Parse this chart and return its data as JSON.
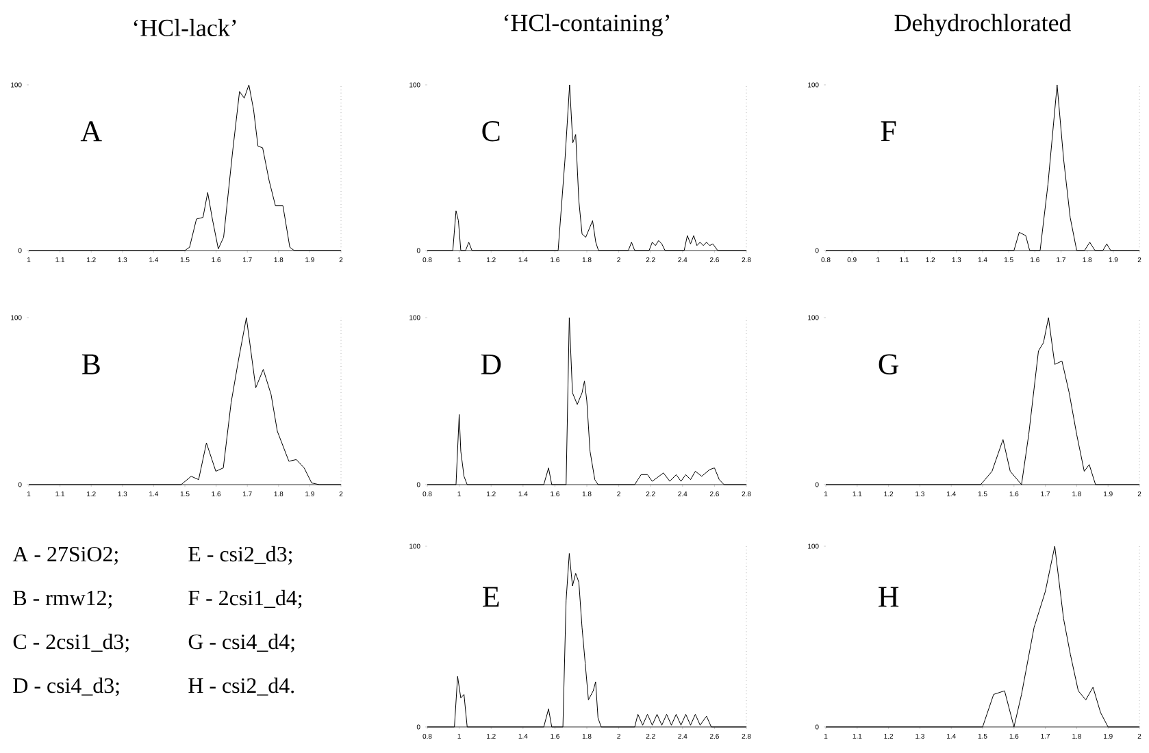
{
  "chart_data": [
    {
      "type": "line",
      "title": "‘HCl-lack’",
      "annotations": [
        "A"
      ],
      "xlim": [
        1,
        2
      ],
      "ylim": [
        0,
        100
      ],
      "xticks": [
        1,
        1.1,
        1.2,
        1.3,
        1.4,
        1.5,
        1.6,
        1.7,
        1.8,
        1.9,
        2
      ],
      "yticks": [
        0,
        100
      ],
      "grid": false,
      "series": [
        {
          "color": "#000000",
          "x": [
            1,
            1.5,
            1.515,
            1.537,
            1.558,
            1.573,
            1.588,
            1.607,
            1.624,
            1.653,
            1.675,
            1.69,
            1.705,
            1.72,
            1.734,
            1.749,
            1.77,
            1.79,
            1.814,
            1.836,
            1.85,
            2
          ],
          "values": [
            0,
            0,
            2,
            19,
            20,
            35,
            19,
            1,
            8,
            60,
            96,
            92,
            100,
            85,
            63,
            62,
            42,
            27,
            27,
            2,
            0,
            0
          ]
        }
      ]
    },
    {
      "type": "line",
      "title": "‘HCl-containing’",
      "annotations": [
        "C"
      ],
      "xlim": [
        0.8,
        2.8
      ],
      "ylim": [
        0,
        100
      ],
      "xticks": [
        0.8,
        1,
        1.2,
        1.4,
        1.6,
        1.8,
        2,
        2.2,
        2.4,
        2.6,
        2.8
      ],
      "yticks": [
        0,
        100
      ],
      "grid": false,
      "series": [
        {
          "color": "#000000",
          "x": [
            0.8,
            0.96,
            0.98,
            0.995,
            1.01,
            1.04,
            1.06,
            1.08,
            1.62,
            1.663,
            1.692,
            1.712,
            1.73,
            1.75,
            1.77,
            1.793,
            1.836,
            1.856,
            1.873,
            2.06,
            2.08,
            2.1,
            2.19,
            2.21,
            2.23,
            2.25,
            2.27,
            2.29,
            2.41,
            2.43,
            2.45,
            2.47,
            2.49,
            2.51,
            2.53,
            2.55,
            2.57,
            2.59,
            2.62,
            2.8
          ],
          "values": [
            0,
            0,
            24,
            18,
            0,
            0,
            5,
            0,
            0,
            55,
            100,
            65,
            70,
            30,
            10,
            8,
            18,
            5,
            0,
            0,
            5,
            0,
            0,
            5,
            3,
            6,
            4,
            0,
            0,
            9,
            4,
            9,
            3,
            5,
            3,
            5,
            3,
            4,
            0,
            0
          ]
        }
      ]
    },
    {
      "type": "line",
      "title": "Dehydrochlorated",
      "annotations": [
        "F"
      ],
      "xlim": [
        0.8,
        2
      ],
      "ylim": [
        0,
        100
      ],
      "xticks": [
        0.8,
        0.9,
        1,
        1.1,
        1.2,
        1.3,
        1.4,
        1.5,
        1.6,
        1.7,
        1.8,
        1.9,
        2
      ],
      "yticks": [
        0,
        100
      ],
      "grid": false,
      "series": [
        {
          "color": "#000000",
          "x": [
            0.8,
            1.52,
            1.54,
            1.565,
            1.58,
            1.62,
            1.65,
            1.685,
            1.71,
            1.735,
            1.76,
            1.79,
            1.81,
            1.83,
            1.86,
            1.875,
            1.89,
            2
          ],
          "values": [
            0,
            0,
            11,
            9,
            0,
            0,
            40,
            100,
            55,
            20,
            0,
            0,
            5,
            0,
            0,
            4,
            0,
            0
          ]
        }
      ]
    },
    {
      "type": "line",
      "annotations": [
        "B"
      ],
      "xlim": [
        1,
        2
      ],
      "ylim": [
        0,
        100
      ],
      "xticks": [
        1,
        1.1,
        1.2,
        1.3,
        1.4,
        1.5,
        1.6,
        1.7,
        1.8,
        1.9,
        2
      ],
      "yticks": [
        0,
        100
      ],
      "grid": false,
      "series": [
        {
          "color": "#000000",
          "x": [
            1,
            1.488,
            1.52,
            1.544,
            1.569,
            1.599,
            1.623,
            1.648,
            1.672,
            1.697,
            1.727,
            1.751,
            1.776,
            1.796,
            1.833,
            1.857,
            1.882,
            1.906,
            1.93,
            2
          ],
          "values": [
            0,
            0,
            5,
            3,
            25,
            8,
            10,
            49,
            75,
            100,
            58,
            69,
            54,
            32,
            14,
            15,
            10,
            1,
            0,
            0
          ]
        }
      ]
    },
    {
      "type": "line",
      "annotations": [
        "D"
      ],
      "xlim": [
        0.8,
        2.8
      ],
      "ylim": [
        0,
        100
      ],
      "xticks": [
        0.8,
        1,
        1.2,
        1.4,
        1.6,
        1.8,
        2,
        2.2,
        2.4,
        2.6,
        2.8
      ],
      "yticks": [
        0,
        100
      ],
      "grid": false,
      "series": [
        {
          "color": "#000000",
          "x": [
            0.8,
            0.98,
            1,
            1.01,
            1.03,
            1.05,
            1.53,
            1.56,
            1.58,
            1.67,
            1.69,
            1.71,
            1.74,
            1.77,
            1.785,
            1.8,
            1.82,
            1.85,
            1.87,
            2.1,
            2.14,
            2.18,
            2.21,
            2.28,
            2.32,
            2.36,
            2.39,
            2.42,
            2.45,
            2.48,
            2.52,
            2.57,
            2.6,
            2.63,
            2.66,
            2.8
          ],
          "values": [
            0,
            0,
            42,
            20,
            5,
            0,
            0,
            10,
            0,
            0,
            100,
            55,
            48,
            55,
            62,
            50,
            20,
            3,
            0,
            0,
            6,
            6,
            2,
            7,
            2,
            6,
            2,
            6,
            3,
            8,
            5,
            9,
            10,
            3,
            0,
            0
          ]
        }
      ]
    },
    {
      "type": "line",
      "annotations": [
        "G"
      ],
      "xlim": [
        1,
        2
      ],
      "ylim": [
        0,
        100
      ],
      "xticks": [
        1,
        1.1,
        1.2,
        1.3,
        1.4,
        1.5,
        1.6,
        1.7,
        1.8,
        1.9,
        2
      ],
      "yticks": [
        0,
        100
      ],
      "grid": false,
      "series": [
        {
          "color": "#000000",
          "x": [
            1,
            1.494,
            1.53,
            1.565,
            1.588,
            1.624,
            1.647,
            1.678,
            1.694,
            1.71,
            1.73,
            1.753,
            1.776,
            1.8,
            1.824,
            1.84,
            1.86,
            2
          ],
          "values": [
            0,
            0,
            8,
            27,
            8,
            0,
            30,
            80,
            85,
            100,
            72,
            74,
            55,
            30,
            8,
            12,
            0,
            0
          ]
        }
      ]
    },
    {
      "type": "other",
      "annotations": [
        "A - 27SiO2;",
        "B - rmw12;",
        "C - 2csi1_d3;",
        "D - csi4_d3;",
        "E - csi2_d3;",
        "F - 2csi1_d4;",
        "G - csi4_d4;",
        "H - csi2_d4."
      ]
    },
    {
      "type": "line",
      "annotations": [
        "E"
      ],
      "xlim": [
        0.8,
        2.8
      ],
      "ylim": [
        0,
        100
      ],
      "xticks": [
        0.8,
        1,
        1.2,
        1.4,
        1.6,
        1.8,
        2,
        2.2,
        2.4,
        2.6,
        2.8
      ],
      "yticks": [
        0,
        100
      ],
      "grid": false,
      "series": [
        {
          "color": "#000000",
          "x": [
            0.8,
            0.97,
            0.99,
            1.01,
            1.03,
            1.05,
            1.53,
            1.56,
            1.58,
            1.65,
            1.67,
            1.69,
            1.71,
            1.73,
            1.75,
            1.77,
            1.79,
            1.81,
            1.84,
            1.855,
            1.87,
            1.89,
            2.1,
            2.12,
            2.15,
            2.18,
            2.21,
            2.24,
            2.27,
            2.3,
            2.33,
            2.36,
            2.39,
            2.42,
            2.45,
            2.48,
            2.51,
            2.55,
            2.58,
            2.8
          ],
          "values": [
            0,
            0,
            28,
            16,
            18,
            0,
            0,
            10,
            0,
            0,
            70,
            96,
            78,
            85,
            80,
            55,
            35,
            15,
            20,
            25,
            5,
            0,
            0,
            7,
            1,
            7,
            1,
            7,
            1,
            7,
            1,
            7,
            1,
            7,
            1,
            7,
            1,
            6,
            0,
            0
          ]
        }
      ]
    },
    {
      "type": "line",
      "annotations": [
        "H"
      ],
      "xlim": [
        1,
        2
      ],
      "ylim": [
        0,
        100
      ],
      "xticks": [
        1,
        1.1,
        1.2,
        1.3,
        1.4,
        1.5,
        1.6,
        1.7,
        1.8,
        1.9,
        2
      ],
      "yticks": [
        0,
        100
      ],
      "grid": false,
      "series": [
        {
          "color": "#000000",
          "x": [
            1,
            1.5,
            1.535,
            1.57,
            1.6,
            1.624,
            1.664,
            1.7,
            1.73,
            1.758,
            1.78,
            1.805,
            1.829,
            1.852,
            1.876,
            1.9,
            2
          ],
          "values": [
            0,
            0,
            18,
            20,
            0,
            18,
            55,
            75,
            100,
            60,
            40,
            20,
            15,
            22,
            8,
            0,
            0
          ]
        }
      ]
    }
  ]
}
